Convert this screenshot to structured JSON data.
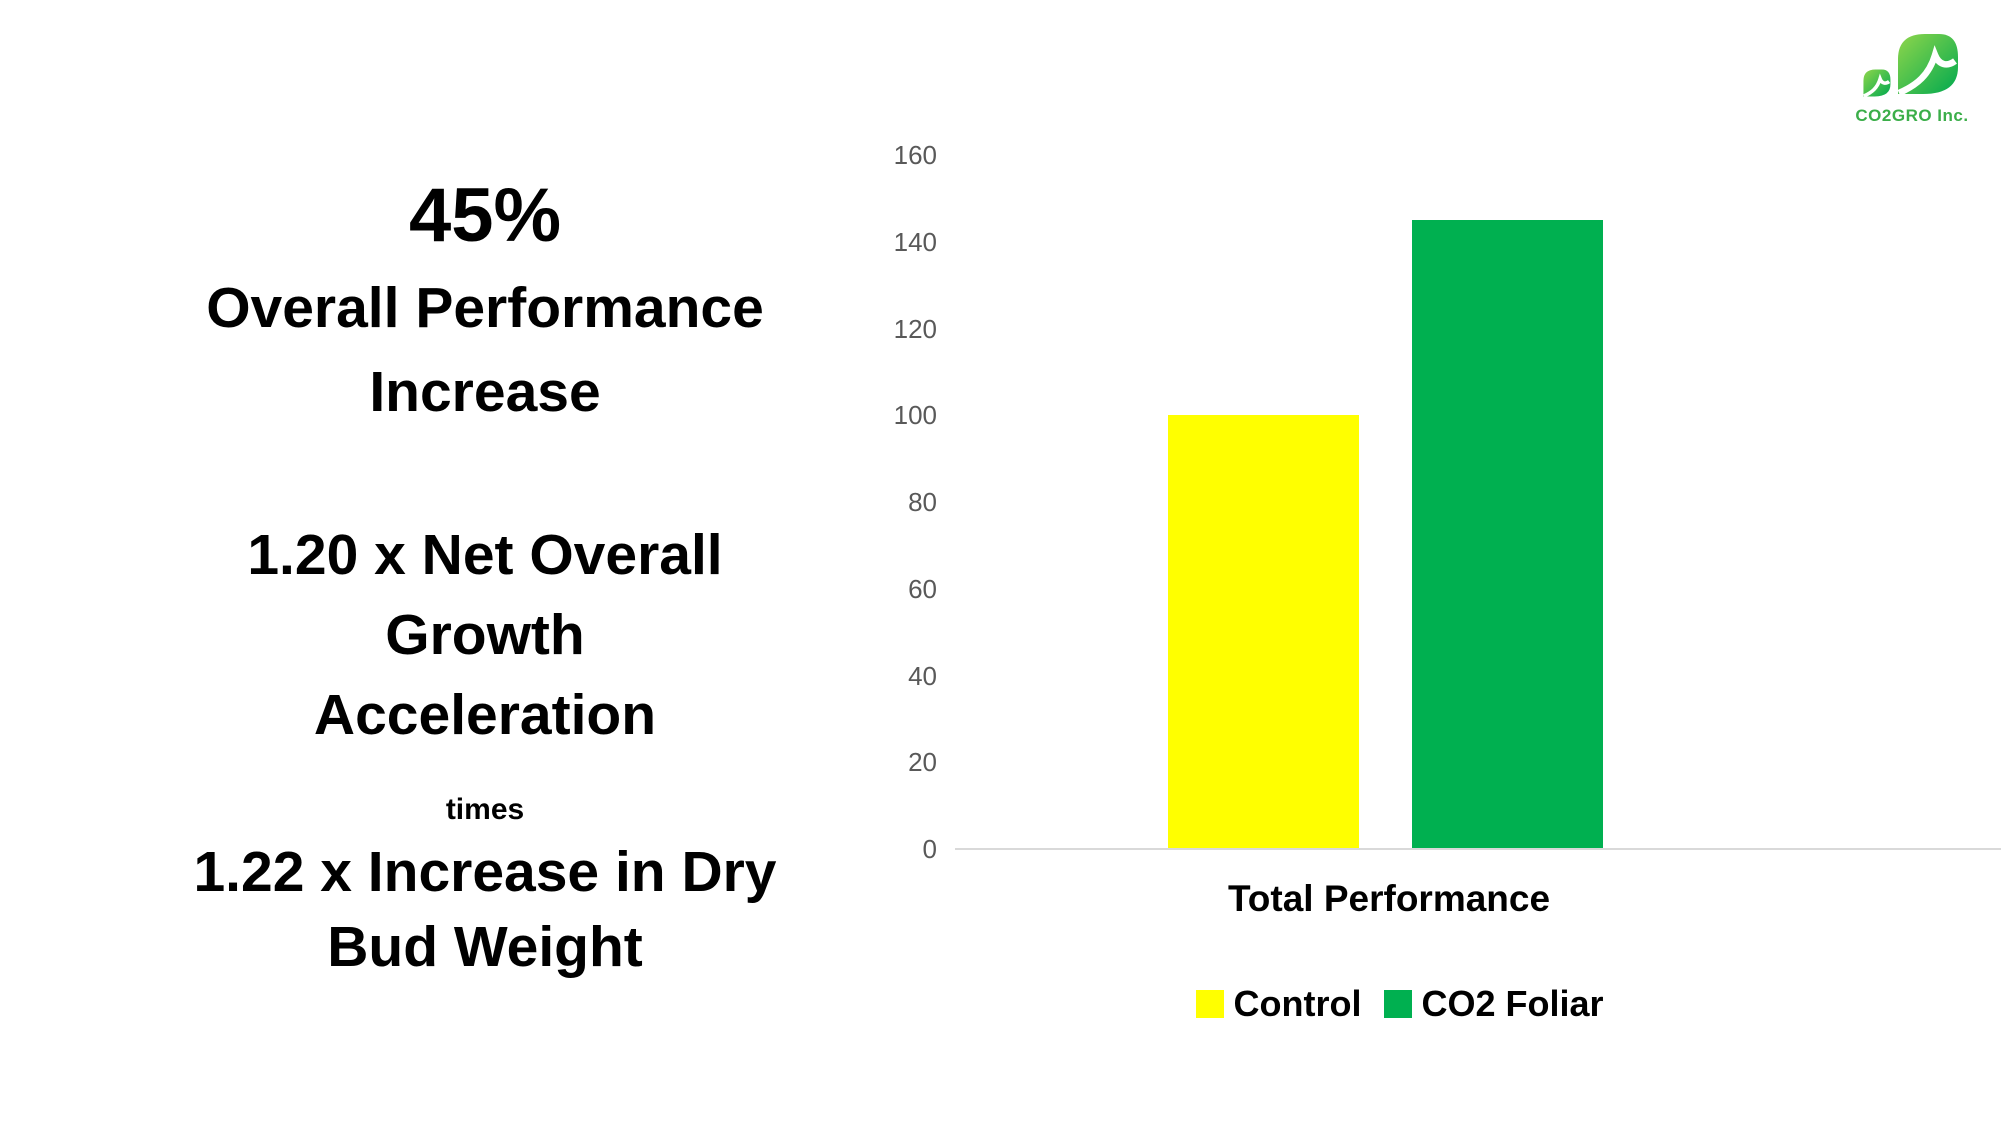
{
  "logo": {
    "company": "CO2GRO Inc.",
    "wordmark_color": "#3BAE49",
    "leaf_gradient_start": "#8FD64B",
    "leaf_gradient_end": "#00A94F"
  },
  "left_panel": {
    "stat1_value": "45%",
    "stat1_lines": [
      "Overall Performance",
      "Increase"
    ],
    "stat2_lines": [
      "1.20 x Net Overall",
      "Growth",
      "Acceleration"
    ],
    "connector": "times",
    "stat3_lines": [
      "1.22 x Increase in Dry",
      "Bud Weight"
    ]
  },
  "chart_data": {
    "type": "bar",
    "categories": [
      "Total Performance"
    ],
    "series": [
      {
        "name": "Control",
        "color": "#FFFF00",
        "values": [
          100
        ]
      },
      {
        "name": "CO2 Foliar",
        "color": "#00B050",
        "values": [
          145
        ]
      }
    ],
    "title": "",
    "xlabel": "Total Performance",
    "ylabel": "",
    "ylim": [
      0,
      160
    ],
    "yticks": [
      0,
      20,
      40,
      60,
      80,
      100,
      120,
      140,
      160
    ],
    "grid": false,
    "legend_position": "bottom",
    "axis_line_color": "#D9D9D9",
    "tick_label_color": "#595959",
    "text_color": "#000000"
  }
}
